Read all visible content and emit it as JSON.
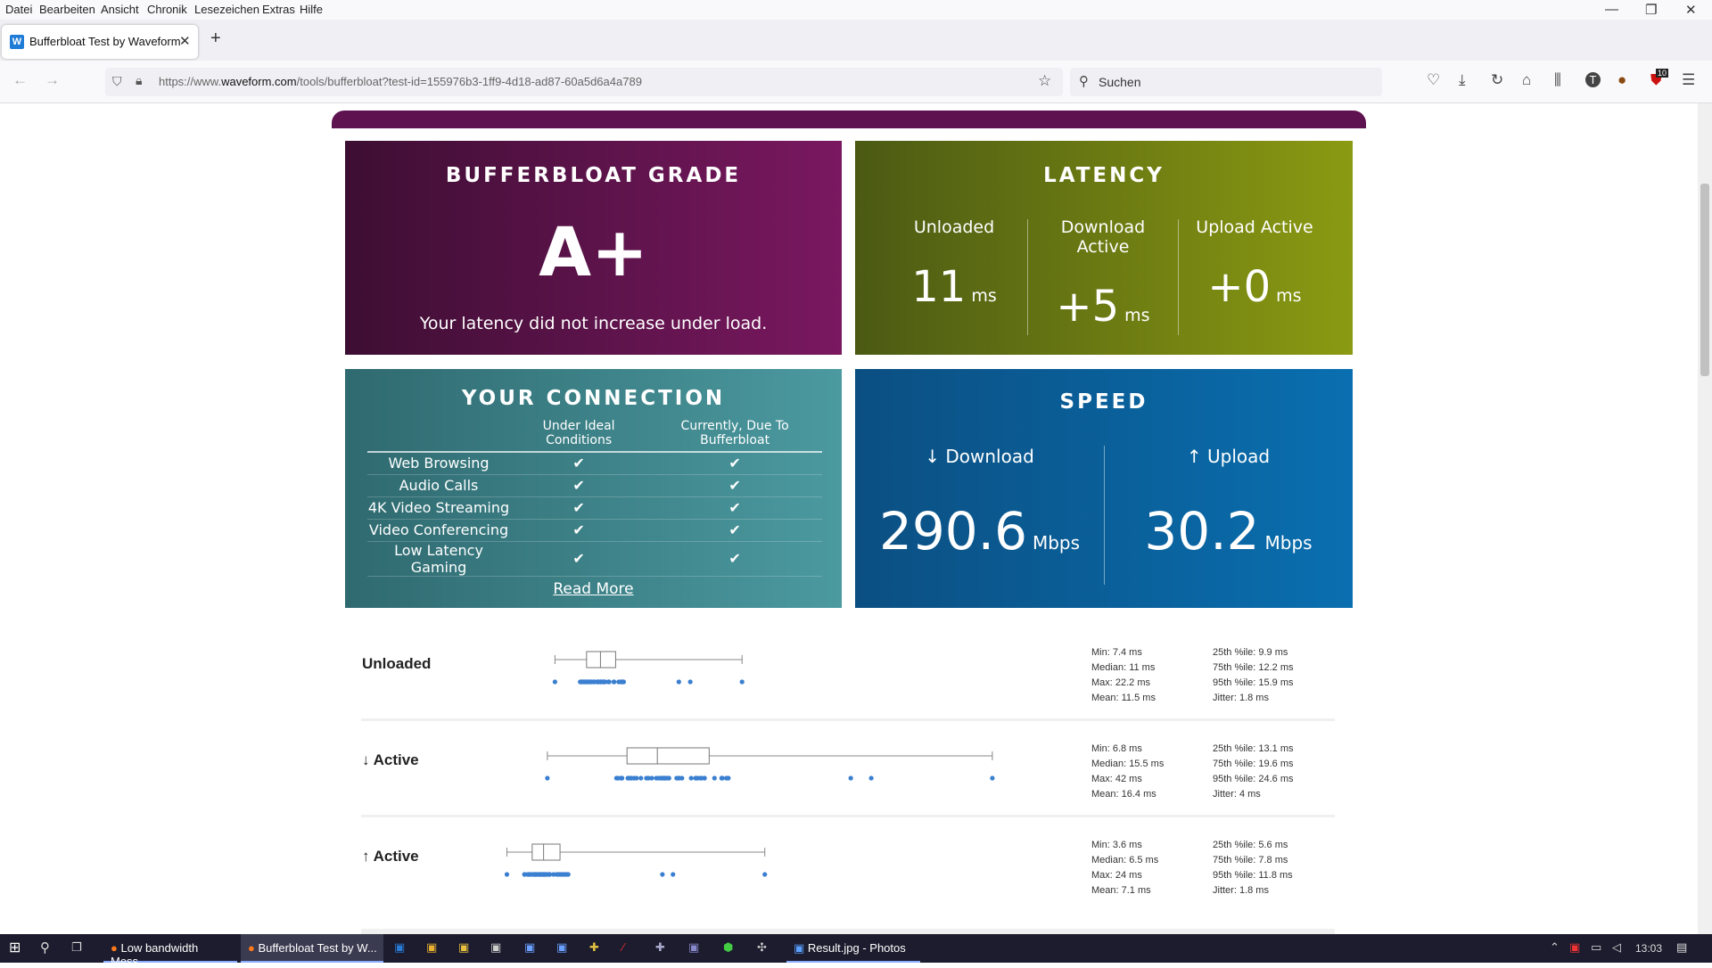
{
  "menu": [
    "Datei",
    "Bearbeiten",
    "Ansicht",
    "Chronik",
    "Lesezeichen",
    "Extras",
    "Hilfe"
  ],
  "tab": {
    "title": "Bufferbloat Test by Waveform",
    "favicon": "W"
  },
  "url": {
    "prefix": "https://www.",
    "host": "waveform.com",
    "path": "/tools/bufferbloat?test-id=155976b3-1ff9-4d18-ad87-60a5d6a4a789"
  },
  "search": {
    "placeholder": "Suchen"
  },
  "toolbar_badge": "10",
  "grade": {
    "title": "BUFFERBLOAT GRADE",
    "value": "A+",
    "text": "Your latency did not increase under load."
  },
  "latency": {
    "title": "LATENCY",
    "items": [
      {
        "label": "Unloaded",
        "value": "11",
        "unit": "ms"
      },
      {
        "label": "Download Active",
        "value": "+5",
        "unit": "ms"
      },
      {
        "label": "Upload Active",
        "value": "+0",
        "unit": "ms"
      }
    ]
  },
  "connection": {
    "title": "YOUR CONNECTION",
    "col1": "Under Ideal Conditions",
    "col2": "Currently, Due To Bufferbloat",
    "rows": [
      "Web Browsing",
      "Audio Calls",
      "4K Video Streaming",
      "Video Conferencing",
      "Low Latency Gaming"
    ],
    "check": "✔",
    "read_more": "Read More"
  },
  "speed": {
    "title": "SPEED",
    "download_label": "↓ Download",
    "download_value": "290.6",
    "download_unit": "Mbps",
    "upload_label": "↑ Upload",
    "upload_value": "30.2",
    "upload_unit": "Mbps"
  },
  "chart_data": [
    {
      "type": "box",
      "label": "Unloaded",
      "box": {
        "min": 7.4,
        "q1": 9.9,
        "median": 11,
        "q3": 12.2,
        "max": 22.2
      },
      "stats": [
        "Min: 7.4 ms",
        "Median: 11 ms",
        "Max: 22.2 ms",
        "Mean: 11.5 ms"
      ],
      "stats2": [
        "25th %ile: 9.9 ms",
        "75th %ile: 12.2 ms",
        "95th %ile: 15.9 ms",
        "Jitter: 1.8 ms"
      ]
    },
    {
      "type": "box",
      "label": "↓ Active",
      "box": {
        "min": 6.8,
        "q1": 13.1,
        "median": 15.5,
        "q3": 19.6,
        "max": 42
      },
      "stats": [
        "Min: 6.8 ms",
        "Median: 15.5 ms",
        "Max: 42 ms",
        "Mean: 16.4 ms"
      ],
      "stats2": [
        "25th %ile: 13.1 ms",
        "75th %ile: 19.6 ms",
        "95th %ile: 24.6 ms",
        "Jitter: 4 ms"
      ]
    },
    {
      "type": "box",
      "label": "↑ Active",
      "box": {
        "min": 3.6,
        "q1": 5.6,
        "median": 6.5,
        "q3": 7.8,
        "max": 24
      },
      "stats": [
        "Min: 3.6 ms",
        "Median: 6.5 ms",
        "Max: 24 ms",
        "Mean: 7.1 ms"
      ],
      "stats2": [
        "25th %ile: 5.6 ms",
        "75th %ile: 7.8 ms",
        "95th %ile: 11.8 ms",
        "Jitter: 1.8 ms"
      ]
    }
  ],
  "taskbar": {
    "app1": "Low bandwidth Mess...",
    "app2": "Bufferbloat Test by W...",
    "app3": "Result.jpg - Photos",
    "clock": "13:03"
  }
}
